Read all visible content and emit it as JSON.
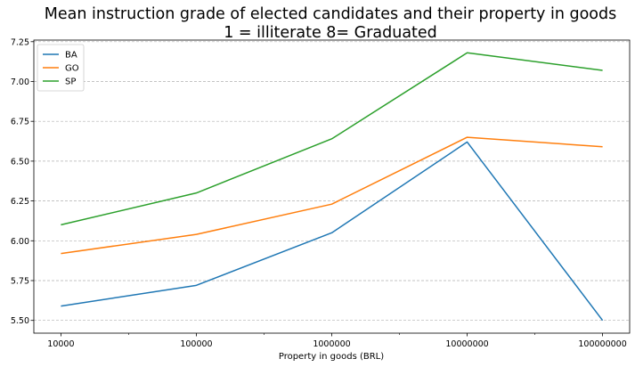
{
  "chart_data": {
    "type": "line",
    "title_lines": [
      "Mean instruction grade of elected candidates and their property in goods",
      "1 = illiterate 8= Graduated"
    ],
    "xlabel": "Property in goods (BRL)",
    "ylabel": "",
    "x_scale": "log",
    "categories": [
      "10000",
      "100000",
      "1000000",
      "10000000",
      "100000000"
    ],
    "x": [
      10000,
      100000,
      1000000,
      10000000,
      100000000
    ],
    "ylim": [
      5.42,
      7.26
    ],
    "y_ticks": [
      5.5,
      5.75,
      6.0,
      6.25,
      6.5,
      6.75,
      7.0,
      7.25
    ],
    "y_tick_labels": [
      "5.50",
      "5.75",
      "6.00",
      "6.25",
      "6.50",
      "6.75",
      "7.00",
      "7.25"
    ],
    "grid": "horizontal dashed",
    "legend_position": "top-left",
    "series": [
      {
        "name": "BA",
        "color": "#1f77b4",
        "values": [
          5.59,
          5.72,
          6.05,
          6.62,
          5.5
        ]
      },
      {
        "name": "GO",
        "color": "#ff7f0e",
        "values": [
          5.92,
          6.04,
          6.23,
          6.65,
          6.59
        ]
      },
      {
        "name": "SP",
        "color": "#2ca02c",
        "values": [
          6.1,
          6.3,
          6.64,
          7.18,
          7.07
        ]
      }
    ]
  }
}
